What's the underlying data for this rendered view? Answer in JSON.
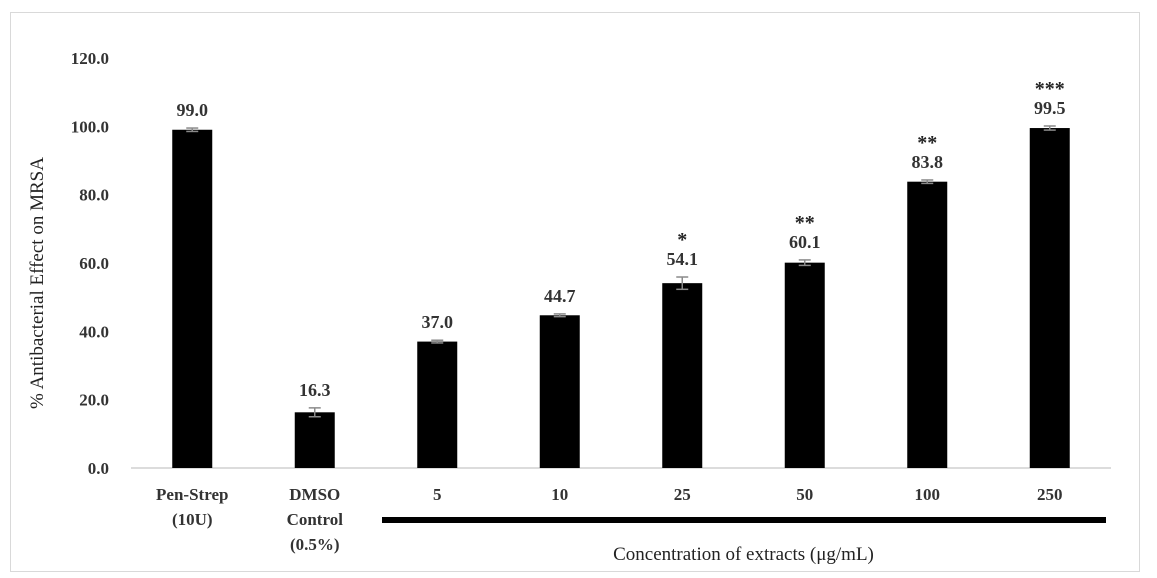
{
  "chart_data": {
    "type": "bar",
    "categories": [
      "Pen-Strep\n(10U)",
      "DMSO\nControl\n(0.5%)",
      "5",
      "10",
      "25",
      "50",
      "100",
      "250"
    ],
    "values": [
      99.0,
      16.3,
      37.0,
      44.7,
      54.1,
      60.1,
      83.8,
      99.5
    ],
    "errors": [
      0.5,
      1.3,
      0.4,
      0.4,
      1.8,
      0.8,
      0.5,
      0.6
    ],
    "data_labels": [
      "99.0",
      "16.3",
      "37.0",
      "44.7",
      "54.1",
      "60.1",
      "83.8",
      "99.5"
    ],
    "significance": [
      "",
      "",
      "",
      "",
      "*",
      "**",
      "**",
      "***"
    ],
    "ylabel": "% Antibacterial Effect on MRSA",
    "xlabel": "Concentration of extracts (μg/mL)",
    "ylim": [
      0,
      120
    ],
    "yticks": [
      "0.0",
      "20.0",
      "40.0",
      "60.0",
      "80.0",
      "100.0",
      "120.0"
    ],
    "grid": false,
    "legend": "none",
    "bar_color": "#000000",
    "group_bracket_categories": [
      "5",
      "250"
    ]
  }
}
